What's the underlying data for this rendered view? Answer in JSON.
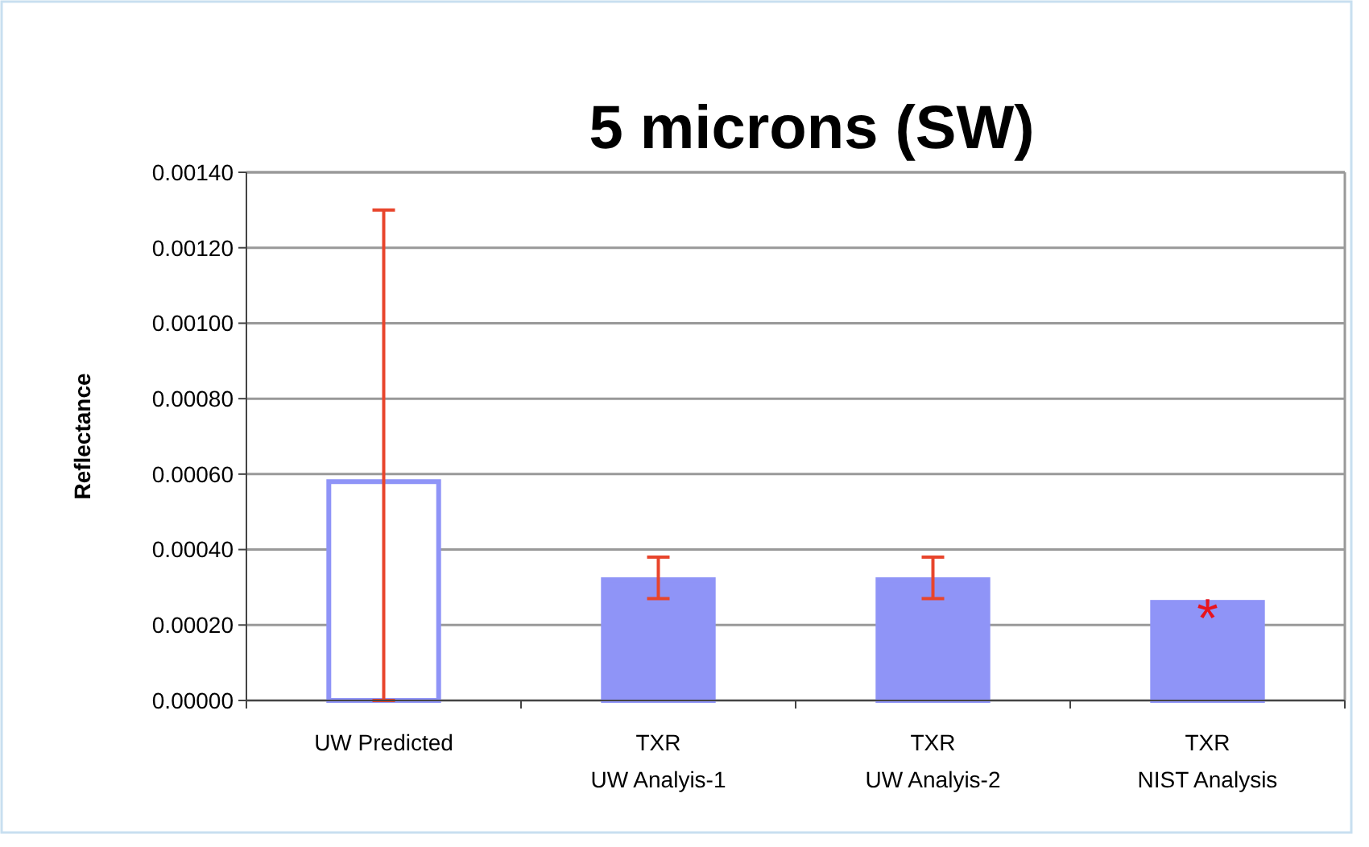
{
  "chart_data": {
    "type": "bar",
    "title": "5 microns (SW)",
    "ylabel": "Reflectance",
    "categories": [
      "UW Predicted",
      "TXR\nUW Analyis-1",
      "TXR\nUW Analyis-2",
      "TXR\nNIST Analysis"
    ],
    "values": [
      0.00058,
      0.00032,
      0.00032,
      0.00026
    ],
    "colors": [
      "#ffffff",
      "#8f94f7",
      "#8f94f7",
      "#8f94f7"
    ],
    "errors": [
      [
        0,
        0.0013
      ],
      [
        0.00027,
        0.00038
      ],
      [
        0.00027,
        0.00038
      ],
      null
    ],
    "ylim": [
      0,
      0.0014
    ],
    "yticks": [
      {
        "value": 0,
        "label": "0.00000"
      },
      {
        "value": 0.0002,
        "label": "0.00020"
      },
      {
        "value": 0.0004,
        "label": "0.00040"
      },
      {
        "value": 0.0006,
        "label": "0.00060"
      },
      {
        "value": 0.0008,
        "label": "0.00080"
      },
      {
        "value": 0.001,
        "label": "0.00100"
      },
      {
        "value": 0.0012,
        "label": "0.00120"
      },
      {
        "value": 0.0014,
        "label": "0.00140"
      }
    ],
    "grid": "y",
    "annotations": [
      {
        "text": "*",
        "x": "TXR\nNIST Analysis",
        "y": 0.00027
      }
    ]
  }
}
